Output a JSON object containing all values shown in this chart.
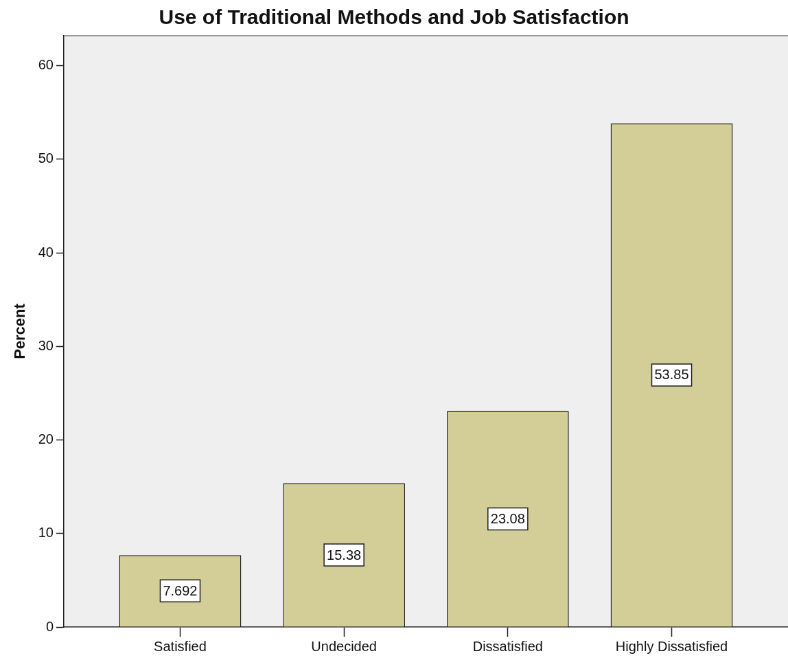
{
  "chart_data": {
    "type": "bar",
    "title": "Use of Traditional Methods and Job Satisfaction",
    "ylabel": "Percent",
    "categories": [
      "Satisfied",
      "Undecided",
      "Dissatisfied",
      "Highly Dissatisfied"
    ],
    "values": [
      7.692,
      15.38,
      23.08,
      53.85
    ],
    "color": "#d3cd97",
    "ylim": [
      0,
      63.2
    ],
    "yticks": [
      0,
      10,
      20,
      30,
      40,
      50,
      60
    ],
    "data_labels": true,
    "grid": false,
    "legend": false
  }
}
